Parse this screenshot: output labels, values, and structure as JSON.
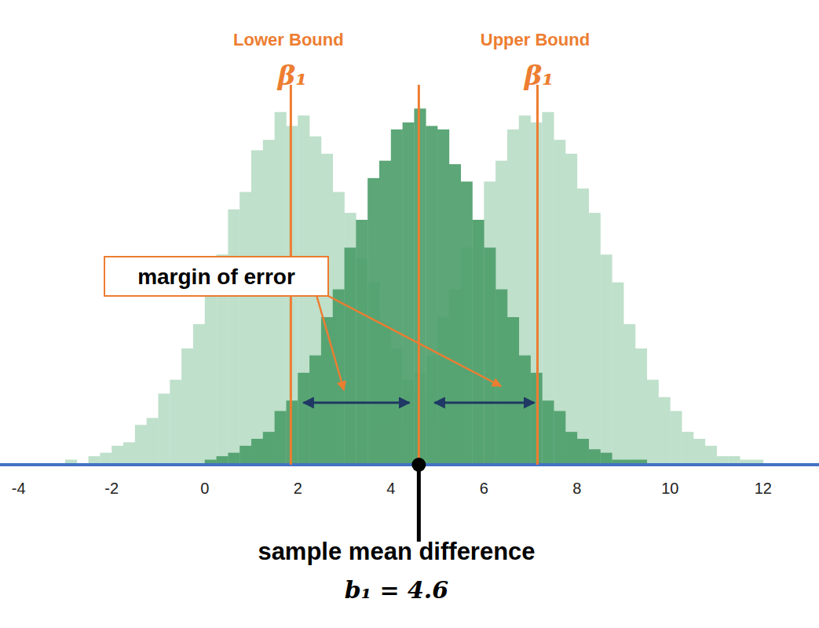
{
  "chart_data": {
    "type": "histogram",
    "bins": [
      -3.75,
      -3.5,
      -3.25,
      -3,
      -2.75,
      -2.5,
      -2.25,
      -2,
      -1.75,
      -1.5,
      -1.25,
      -1,
      -0.75,
      -0.5,
      -0.25,
      0,
      0.25,
      0.5,
      0.75,
      1,
      1.25,
      1.5,
      1.75,
      2,
      2.25,
      2.5,
      2.75,
      3,
      3.25,
      3.5,
      3.75,
      4,
      4.25,
      4.5,
      4.75,
      5,
      5.25,
      5.5,
      5.75,
      6,
      6.25,
      6.5,
      6.75,
      7,
      7.25,
      7.5,
      7.75,
      8,
      8.25,
      8.5,
      8.75,
      9,
      9.25,
      9.5,
      9.75,
      10,
      10.25,
      10.5,
      10.75,
      11,
      11.25,
      11.5,
      11.75,
      12,
      12.25,
      12.5,
      12.75
    ],
    "series": [
      {
        "color": "#b7dcc4",
        "values": [
          0,
          0,
          0,
          1,
          0,
          2,
          3,
          5,
          6,
          11,
          13,
          20,
          24,
          33,
          40,
          52,
          60,
          73,
          78,
          90,
          93,
          101,
          97,
          100,
          94,
          89,
          78,
          72,
          59,
          52,
          40,
          33,
          24,
          20,
          13,
          11,
          6,
          5,
          2,
          2,
          1,
          0,
          0,
          0,
          0,
          0,
          0,
          0,
          0,
          0,
          0,
          0,
          0,
          0,
          0,
          0,
          0,
          0,
          0,
          0,
          0,
          0,
          0,
          0,
          0,
          0
        ]
      },
      {
        "color": "#b7dcc4",
        "values": [
          0,
          0,
          0,
          0,
          0,
          0,
          0,
          0,
          0,
          0,
          0,
          0,
          0,
          0,
          0,
          0,
          0,
          0,
          0,
          0,
          0,
          0,
          0,
          0,
          1,
          1,
          1,
          3,
          4,
          7,
          10,
          13,
          19,
          26,
          31,
          42,
          50,
          62,
          70,
          81,
          87,
          96,
          100,
          98,
          101,
          93,
          89,
          79,
          72,
          60,
          52,
          40,
          33,
          24,
          19,
          15,
          9,
          7,
          5,
          2,
          2,
          1,
          1,
          0,
          0,
          0
        ]
      },
      {
        "color": "#4f9f6c",
        "values": [
          0,
          0,
          0,
          0,
          0,
          0,
          0,
          0,
          0,
          0,
          0,
          0,
          0,
          0,
          0,
          1,
          2,
          3,
          5,
          7,
          9,
          15,
          18,
          26,
          31,
          42,
          50,
          62,
          70,
          82,
          87,
          96,
          98,
          102,
          97,
          96,
          86,
          81,
          70,
          62,
          50,
          42,
          31,
          26,
          18,
          15,
          9,
          7,
          4,
          3,
          1,
          1,
          1,
          0,
          0,
          0,
          0,
          0,
          0,
          0,
          0,
          0,
          0,
          0,
          0,
          0
        ]
      }
    ],
    "xlim": [
      -4.4,
      13.2
    ],
    "xticks": [
      -4,
      -2,
      0,
      2,
      4,
      6,
      8,
      10,
      12
    ],
    "ylim": [
      0,
      105
    ],
    "tick_labels": "x",
    "bounds": [
      {
        "label": "Lower Bound",
        "symbol": "β₁",
        "value": 1.85
      },
      {
        "label": "Upper Bound",
        "symbol": "β₁",
        "value": 7.15
      }
    ],
    "sample_mean": {
      "label": "sample mean difference",
      "text": "b₁ = 4.6",
      "value": 4.6
    },
    "margin_of_error": {
      "label": "margin of error"
    }
  }
}
